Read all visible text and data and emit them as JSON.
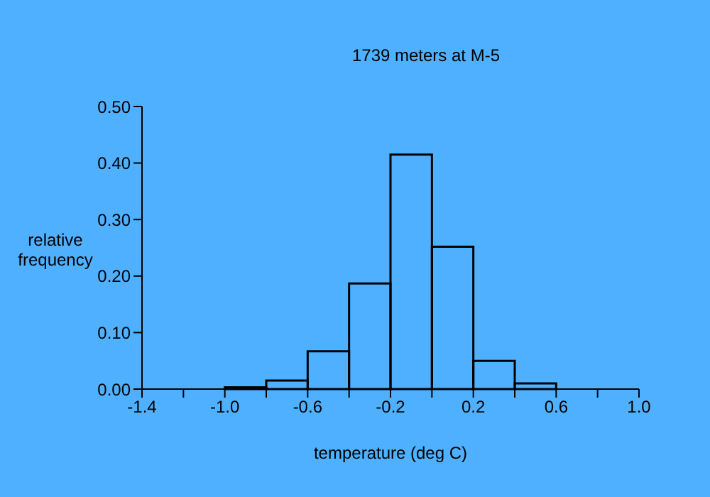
{
  "chart_data": {
    "type": "histogram",
    "title": "1739 meters at M-5",
    "xlabel": "temperature (deg C)",
    "ylabel": "relative\nfrequency",
    "bins": [
      -1.0,
      -0.8,
      -0.6,
      -0.4,
      -0.2,
      0.0,
      0.2,
      0.4,
      0.6
    ],
    "values": [
      0.003,
      0.015,
      0.067,
      0.187,
      0.415,
      0.252,
      0.05,
      0.01
    ],
    "color": "#000000",
    "xlim": [
      -1.4,
      1.0
    ],
    "xticks": [
      -1.4,
      {
        "value": -1.2,
        "label": null
      },
      {
        "value": -1.0,
        "label": "-1.0"
      },
      {
        "value": -0.8,
        "label": null
      },
      -0.6,
      {
        "value": -0.4,
        "label": null
      },
      -0.2,
      {
        "value": 0.0,
        "label": null
      },
      0.2,
      {
        "value": 0.4,
        "label": null
      },
      0.6,
      {
        "value": 0.8,
        "label": null
      },
      {
        "value": 1.0,
        "label": "1.0"
      }
    ],
    "ylim": [
      0,
      0.5
    ],
    "yticks": [
      {
        "value": 0,
        "label": "0.00"
      },
      {
        "value": 0.1,
        "label": "0.10"
      },
      {
        "value": 0.2,
        "label": "0.20"
      },
      {
        "value": 0.3,
        "label": "0.30"
      },
      {
        "value": 0.4,
        "label": "0.40"
      },
      {
        "value": 0.5,
        "label": "0.50"
      }
    ],
    "grid": false
  }
}
